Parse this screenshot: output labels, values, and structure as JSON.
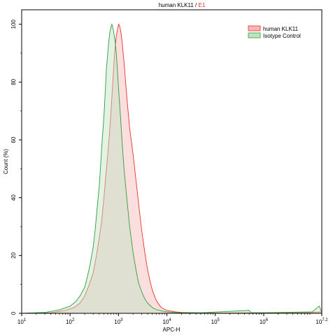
{
  "chart_data": {
    "type": "area",
    "title": {
      "main": "human KLK11",
      "separator": " / ",
      "gate": "E1",
      "gate_color": "#e8322b"
    },
    "xlabel": "APC-H",
    "ylabel": "Count (%)",
    "x_scale": "log",
    "xlim": [
      10,
      15848932
    ],
    "ylim": [
      0,
      105
    ],
    "x_ticks": [
      {
        "value": 10,
        "base": "10",
        "exp": "1"
      },
      {
        "value": 100,
        "base": "10",
        "exp": "2"
      },
      {
        "value": 1000,
        "base": "10",
        "exp": "3"
      },
      {
        "value": 10000,
        "base": "10",
        "exp": "4"
      },
      {
        "value": 100000,
        "base": "10",
        "exp": "5"
      },
      {
        "value": 1000000,
        "base": "10",
        "exp": "6"
      },
      {
        "value": 15848932,
        "base": "10",
        "exp": "7.2"
      }
    ],
    "y_ticks": [
      {
        "value": 0,
        "label": "0"
      },
      {
        "value": 20,
        "label": "20"
      },
      {
        "value": 40,
        "label": "40"
      },
      {
        "value": 60,
        "label": "60"
      },
      {
        "value": 80,
        "label": "80"
      },
      {
        "value": 100,
        "label": "100"
      }
    ],
    "legend_position": "top-right",
    "grid": false,
    "series": [
      {
        "name": "human KLK11",
        "line_color": "#e8322b",
        "fill_color": "#f5b8b5",
        "x": [
          10,
          40,
          80,
          120,
          160,
          200,
          250,
          300,
          350,
          400,
          450,
          500,
          550,
          600,
          650,
          700,
          750,
          800,
          850,
          900,
          950,
          1000,
          1050,
          1100,
          1150,
          1200,
          1300,
          1400,
          1500,
          1700,
          2000,
          2300,
          2600,
          3000,
          3500,
          4000,
          4500,
          5000,
          6000,
          7000,
          8000,
          10000,
          15000,
          20000,
          40000,
          100000,
          1000000,
          10000000,
          15848932
        ],
        "y": [
          0,
          0.2,
          1.0,
          2.0,
          3.5,
          6.0,
          10.0,
          14.0,
          20.0,
          26.0,
          32.0,
          40.0,
          48.0,
          55.0,
          62.0,
          70.0,
          78.0,
          86.0,
          92.0,
          96.0,
          98.0,
          100.0,
          99.5,
          98.0,
          96.0,
          93.0,
          87.0,
          80.0,
          74.0,
          64.0,
          55.0,
          46.0,
          38.0,
          29.0,
          21.0,
          15.0,
          11.0,
          8.0,
          4.5,
          2.8,
          1.8,
          1.0,
          0.5,
          0.3,
          0.2,
          0.1,
          0.2,
          0.3,
          0.5
        ]
      },
      {
        "name": "Isotype Control",
        "line_color": "#2e9e3e",
        "fill_color": "#bfe2c0",
        "x": [
          10,
          30,
          60,
          100,
          130,
          160,
          200,
          230,
          260,
          300,
          330,
          360,
          400,
          430,
          460,
          500,
          530,
          560,
          600,
          630,
          660,
          700,
          730,
          760,
          800,
          850,
          900,
          950,
          1000,
          1100,
          1200,
          1300,
          1500,
          1700,
          2000,
          2300,
          2600,
          3000,
          3500,
          4000,
          5000,
          6000,
          8000,
          10000,
          15000,
          20000,
          50000,
          500000,
          550000,
          1000000,
          10000000,
          14000000,
          15848932
        ],
        "y": [
          0,
          0.3,
          1.2,
          2.5,
          4.0,
          6.0,
          9.0,
          13.0,
          17.0,
          23.0,
          29.0,
          36.0,
          44.0,
          52.0,
          60.0,
          68.0,
          76.0,
          84.0,
          90.0,
          94.0,
          97.0,
          99.0,
          100.0,
          99.0,
          97.0,
          94.0,
          90.0,
          84.0,
          78.0,
          68.0,
          58.0,
          50.0,
          39.0,
          30.0,
          21.0,
          15.0,
          10.5,
          7.5,
          5.0,
          3.5,
          2.0,
          1.3,
          0.8,
          0.5,
          0.3,
          0.2,
          0.2,
          1.0,
          0.2,
          0.2,
          0.5,
          2.5,
          0.4
        ]
      }
    ]
  }
}
